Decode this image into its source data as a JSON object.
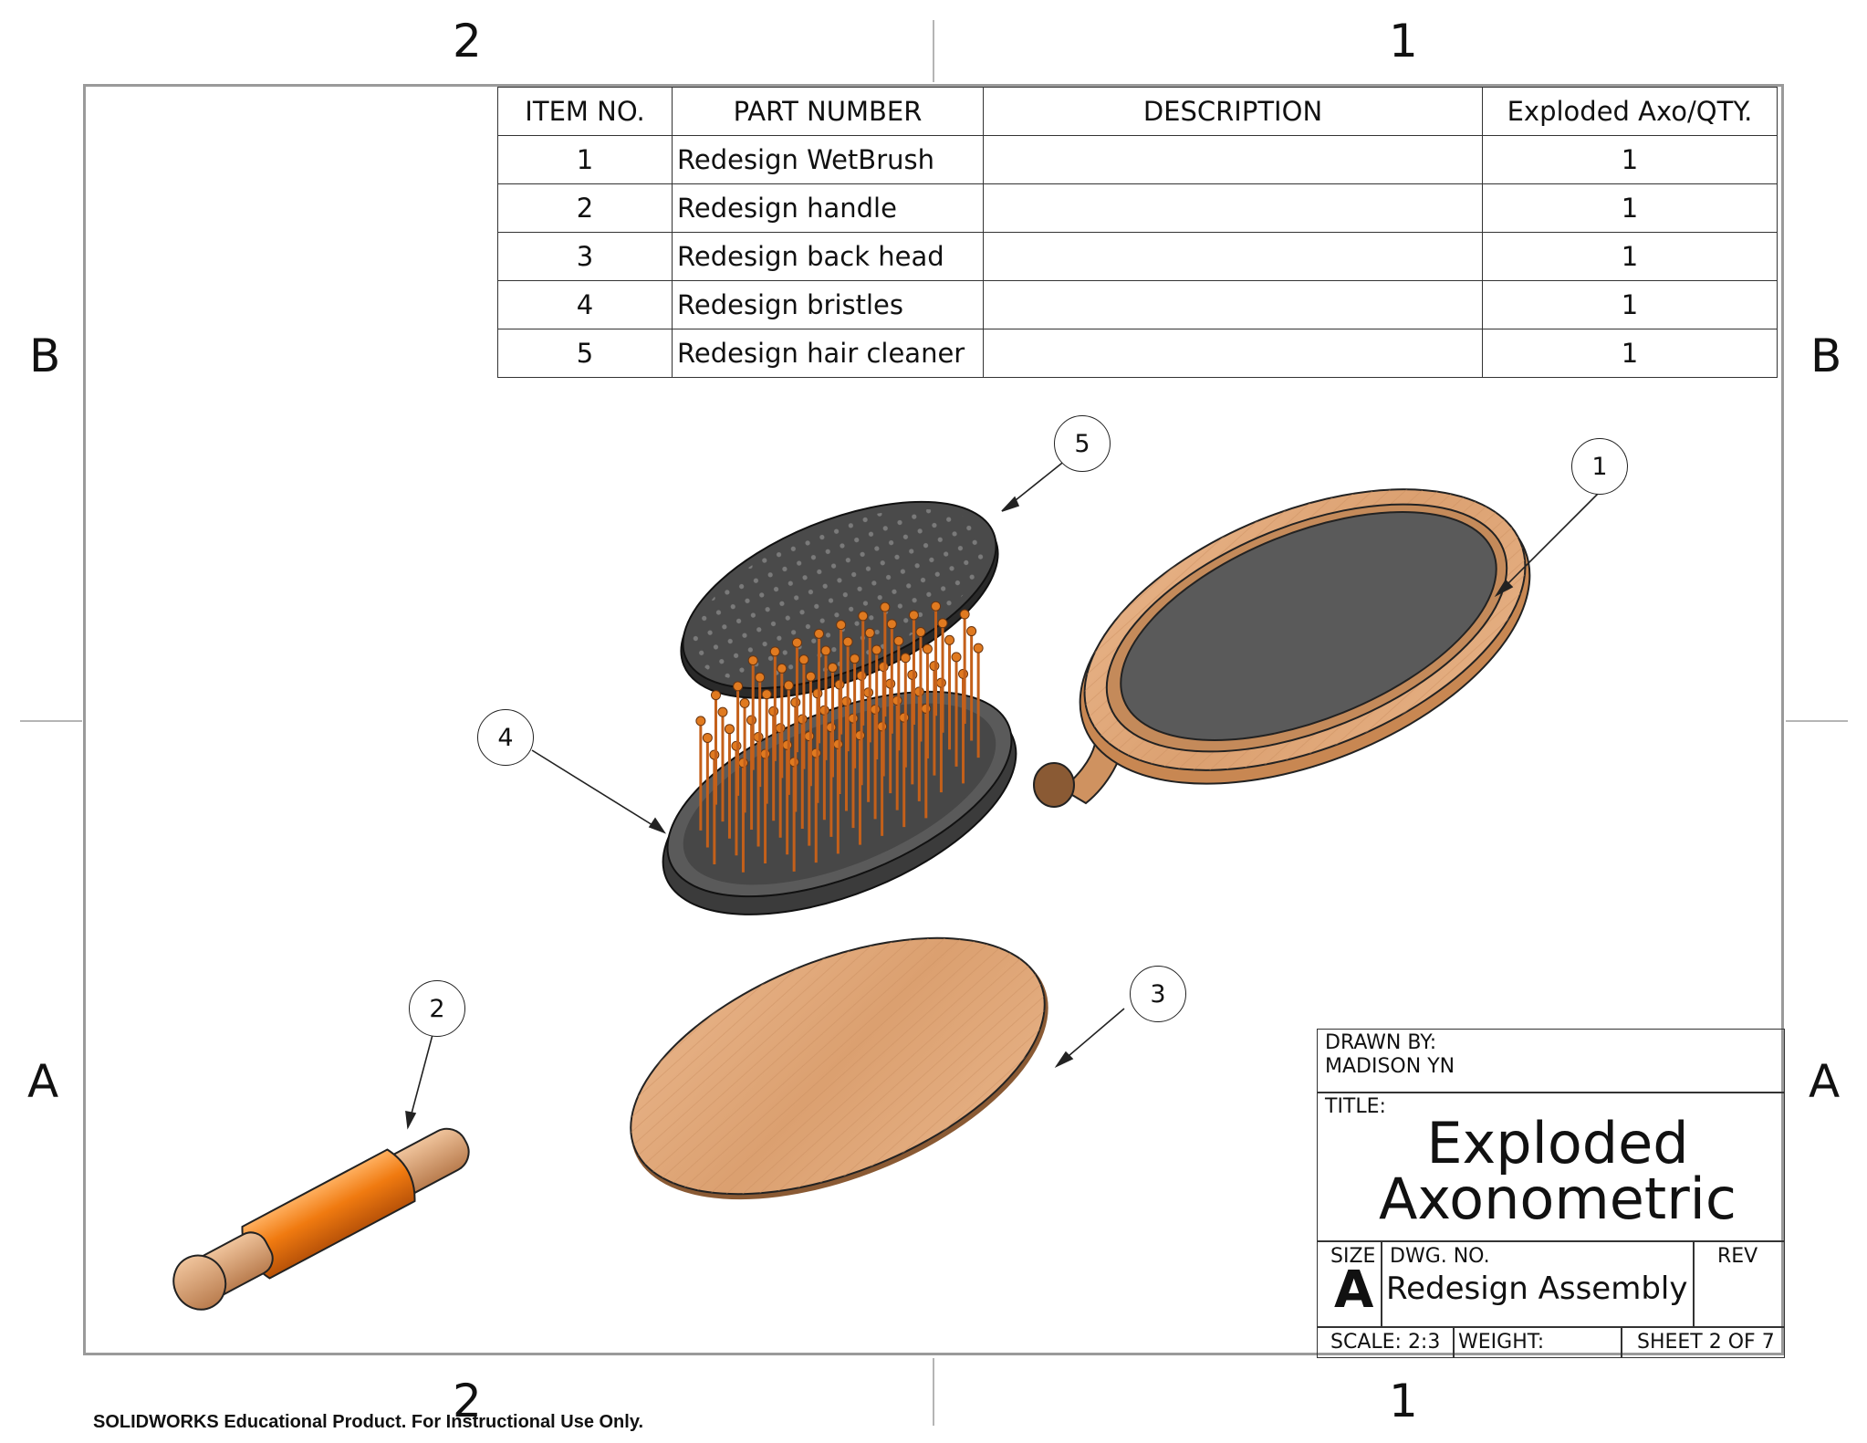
{
  "zones": {
    "col_left": "2",
    "col_right": "1",
    "row_upper": "B",
    "row_lower": "A"
  },
  "bom": {
    "headers": [
      "ITEM NO.",
      "PART NUMBER",
      "DESCRIPTION",
      "Exploded Axo/QTY."
    ],
    "rows": [
      {
        "item": "1",
        "part": "Redesign WetBrush",
        "desc": "",
        "qty": "1"
      },
      {
        "item": "2",
        "part": "Redesign handle",
        "desc": "",
        "qty": "1"
      },
      {
        "item": "3",
        "part": "Redesign back head",
        "desc": "",
        "qty": "1"
      },
      {
        "item": "4",
        "part": "Redesign bristles",
        "desc": "",
        "qty": "1"
      },
      {
        "item": "5",
        "part": "Redesign hair cleaner",
        "desc": "",
        "qty": "1"
      }
    ]
  },
  "balloons": [
    "1",
    "2",
    "3",
    "4",
    "5"
  ],
  "title_block": {
    "drawn_by_label": "DRAWN BY:",
    "drawn_by_value": "MADISON YN",
    "title_label": "TITLE:",
    "title_line1": "Exploded",
    "title_line2": "Axonometric",
    "size_label": "SIZE",
    "size_value": "A",
    "dwg_no_label": "DWG.  NO.",
    "dwg_no_value": "Redesign Assembly",
    "rev_label": "REV",
    "scale": "SCALE: 2:3",
    "weight": "WEIGHT:",
    "sheet": "SHEET 2 OF 7"
  },
  "footer": {
    "watermark": "SOLIDWORKS Educational Product. For Instructional Use Only."
  },
  "colors": {
    "wood": "#dca57a",
    "wood_dark": "#b87a48",
    "rubber": "#4a4a4a",
    "rubber_dark": "#2e2e2e",
    "handle_orange": "#f07a10",
    "bristle": "#c4601a",
    "frame_line": "#9a9a9a"
  }
}
